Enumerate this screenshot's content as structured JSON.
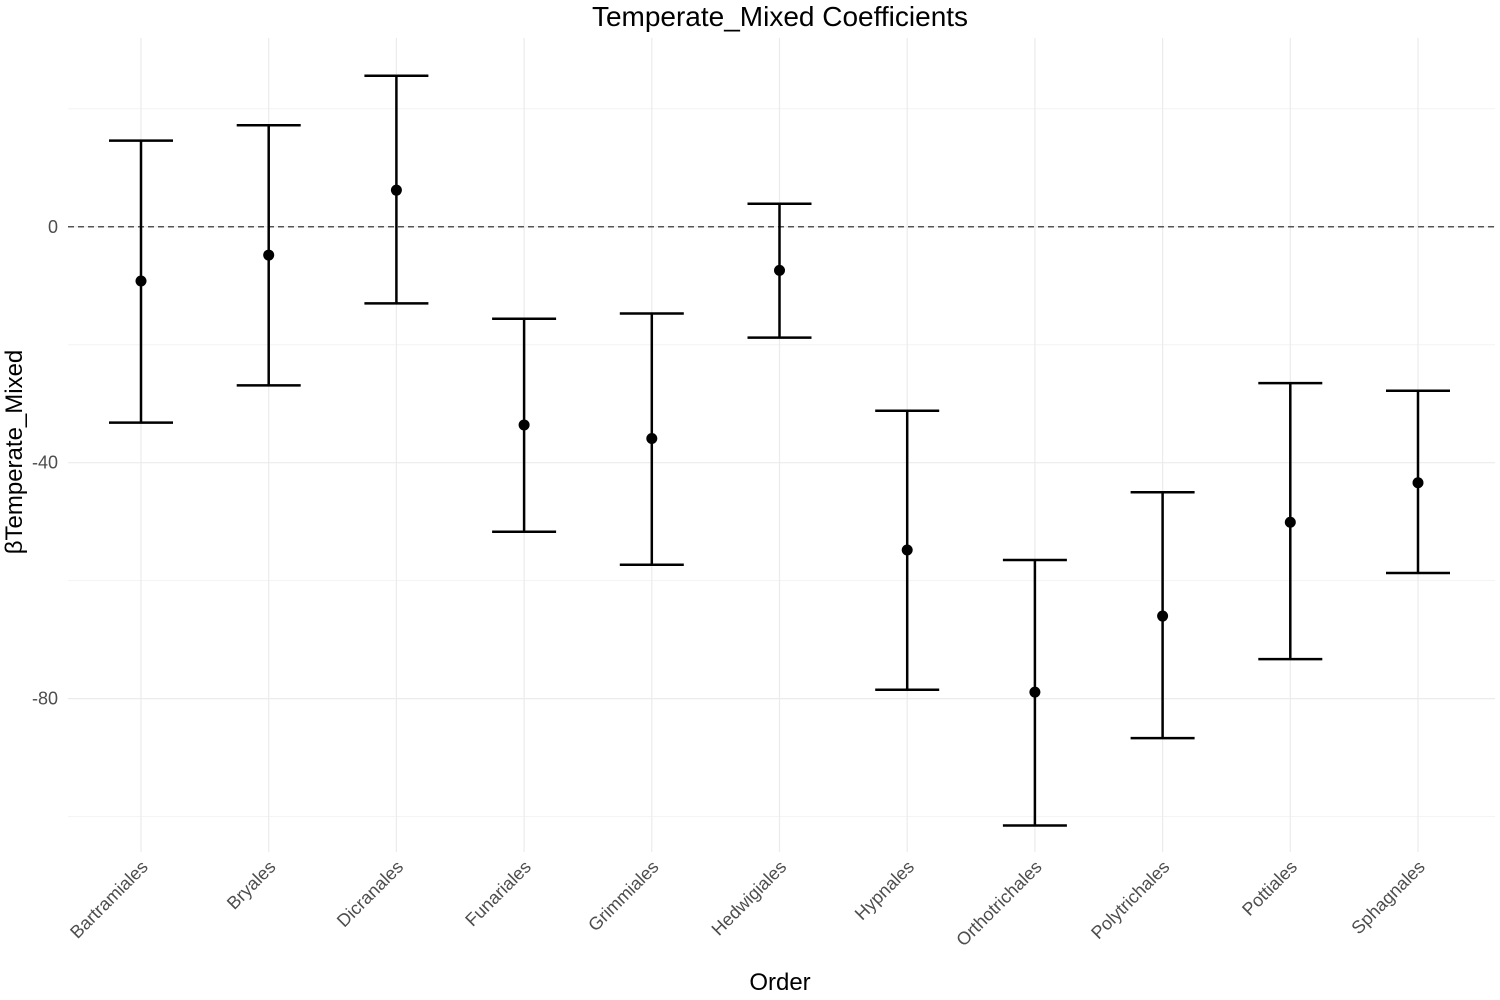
{
  "chart_data": {
    "type": "errorbar",
    "title": "Temperate_Mixed Coefficients",
    "xlabel": "Order",
    "ylabel": "βTemperate_Mixed",
    "ylim": [
      -106,
      32
    ],
    "yticks": [
      0,
      -40,
      -80
    ],
    "yticks_labels": [
      "0",
      "-40",
      "-80"
    ],
    "minor_gridlines": [
      20,
      -20,
      -60,
      -100
    ],
    "reference_line": 0,
    "grid": true,
    "categories": [
      "Bartramiales",
      "Bryales",
      "Dicranales",
      "Funariales",
      "Grimmiales",
      "Hedwigiales",
      "Hypnales",
      "Orthotrichales",
      "Polytrichales",
      "Pottiales",
      "Sphagnales"
    ],
    "estimate": [
      -9.2,
      -4.8,
      6.2,
      -33.6,
      -35.9,
      -7.4,
      -54.8,
      -78.9,
      -66.0,
      -50.1,
      -43.4
    ],
    "lower": [
      -33.2,
      -26.9,
      -13.0,
      -51.7,
      -57.3,
      -18.8,
      -78.5,
      -101.5,
      -86.7,
      -73.3,
      -58.7
    ],
    "upper": [
      14.6,
      17.2,
      25.6,
      -15.6,
      -14.7,
      3.9,
      -31.2,
      -56.5,
      -45.0,
      -26.5,
      -27.8
    ],
    "colors": {
      "marks": "#000000",
      "grid": "#ebebeb",
      "reference_line": "#555555"
    }
  }
}
